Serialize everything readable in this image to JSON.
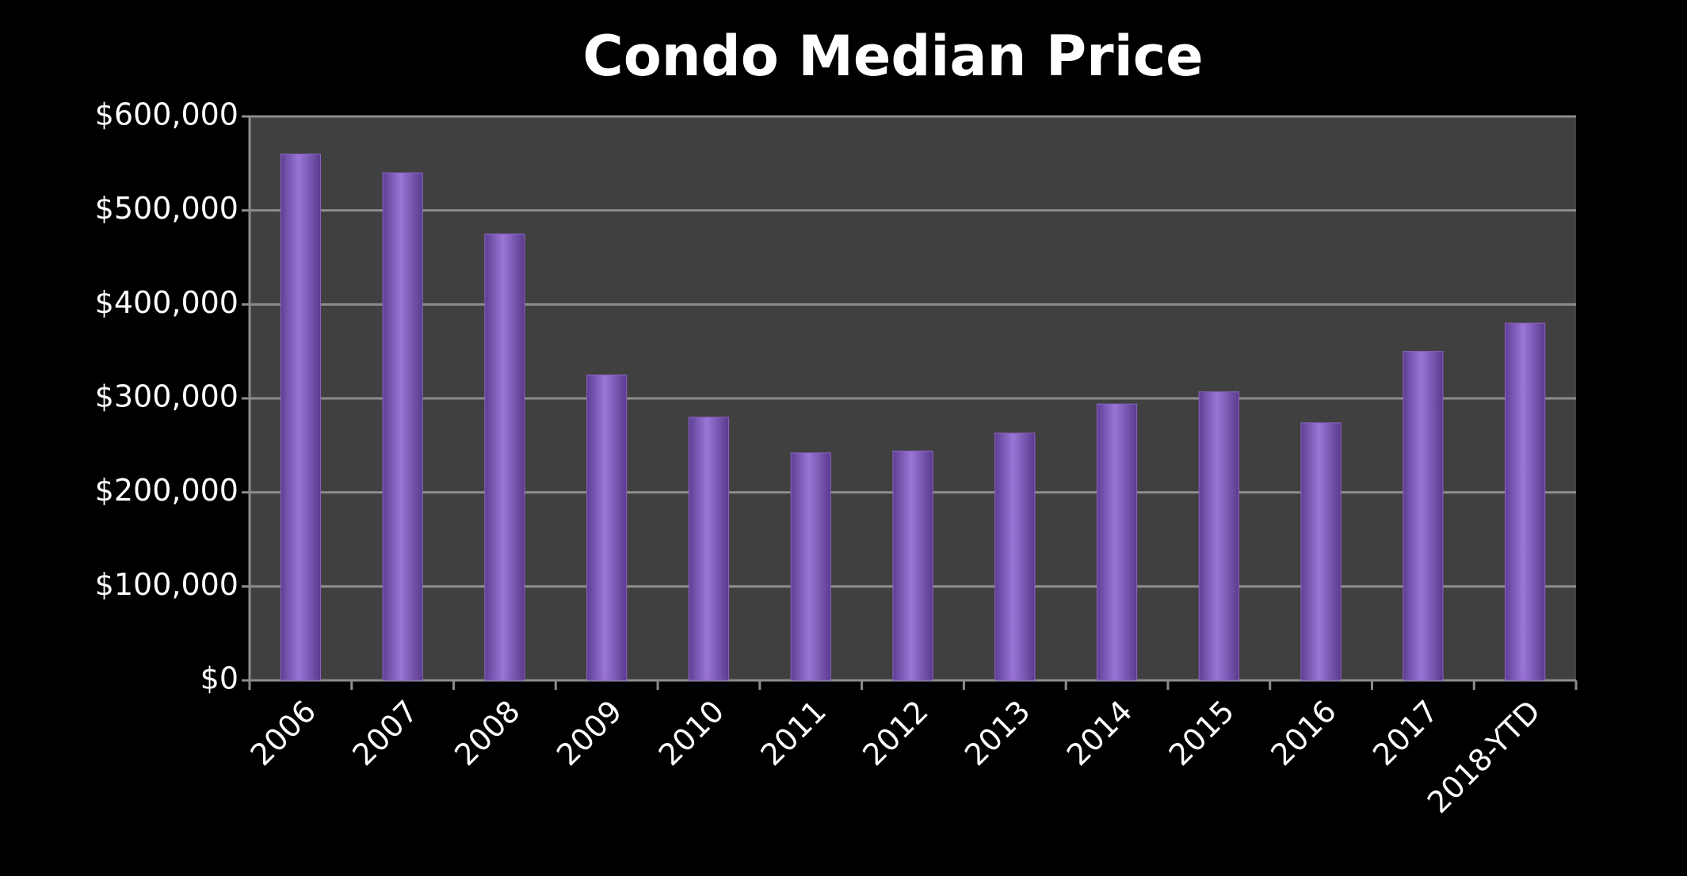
{
  "chart_data": {
    "type": "bar",
    "title": "Condo Median Price",
    "categories": [
      "2006",
      "2007",
      "2008",
      "2009",
      "2010",
      "2011",
      "2012",
      "2013",
      "2014",
      "2015",
      "2016",
      "2017",
      "2018-YTD"
    ],
    "values": [
      560000,
      540000,
      475000,
      325000,
      280000,
      242000,
      244000,
      263000,
      294000,
      307000,
      274000,
      350000,
      380000
    ],
    "color": "#8a64c4",
    "ylim": [
      0,
      600000
    ],
    "yticks": [
      {
        "value": 0,
        "label": "$0"
      },
      {
        "value": 100000,
        "label": "$100,000"
      },
      {
        "value": 200000,
        "label": "$200,000"
      },
      {
        "value": 300000,
        "label": "$300,000"
      },
      {
        "value": 400000,
        "label": "$400,000"
      },
      {
        "value": 500000,
        "label": "$500,000"
      },
      {
        "value": 600000,
        "label": "$600,000"
      }
    ],
    "grid": true
  }
}
